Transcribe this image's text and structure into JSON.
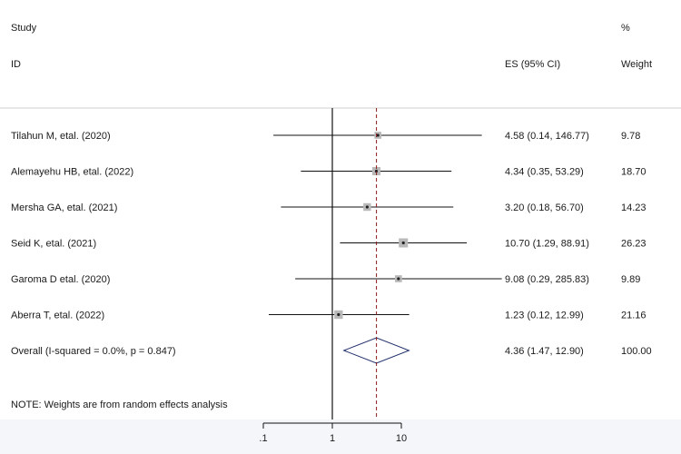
{
  "headers": {
    "study": "Study",
    "id": "ID",
    "es": "ES (95% CI)",
    "pct": "%",
    "weight": "Weight"
  },
  "note": "NOTE: Weights are from random effects analysis",
  "chart_data": {
    "type": "forest",
    "x_scale": "log",
    "x_ticks": [
      0.1,
      1,
      10
    ],
    "x_tick_labels": [
      ".1",
      "1",
      "10"
    ],
    "reference_line": 1,
    "overall_line": 4.36,
    "studies": [
      {
        "label": "Tilahun M, etal. (2020)",
        "es": 4.58,
        "lo": 0.14,
        "hi": 146.77,
        "es_text": "4.58 (0.14, 146.77)",
        "weight": 9.78,
        "weight_text": "9.78"
      },
      {
        "label": "Alemayehu HB, etal. (2022)",
        "es": 4.34,
        "lo": 0.35,
        "hi": 53.29,
        "es_text": "4.34 (0.35, 53.29)",
        "weight": 18.7,
        "weight_text": "18.70"
      },
      {
        "label": "Mersha GA, etal. (2021)",
        "es": 3.2,
        "lo": 0.18,
        "hi": 56.7,
        "es_text": "3.20 (0.18, 56.70)",
        "weight": 14.23,
        "weight_text": "14.23"
      },
      {
        "label": "Seid K, etal. (2021)",
        "es": 10.7,
        "lo": 1.29,
        "hi": 88.91,
        "es_text": "10.70 (1.29, 88.91)",
        "weight": 26.23,
        "weight_text": "26.23"
      },
      {
        "label": "Garoma D etal. (2020)",
        "es": 9.08,
        "lo": 0.29,
        "hi": 285.83,
        "es_text": "9.08 (0.29, 285.83)",
        "weight": 9.89,
        "weight_text": "9.89"
      },
      {
        "label": "Aberra T, etal. (2022)",
        "es": 1.23,
        "lo": 0.12,
        "hi": 12.99,
        "es_text": "1.23 (0.12, 12.99)",
        "weight": 21.16,
        "weight_text": "21.16"
      }
    ],
    "overall": {
      "label": "Overall  (I-squared = 0.0%, p = 0.847)",
      "es": 4.36,
      "lo": 1.47,
      "hi": 12.9,
      "es_text": "4.36 (1.47, 12.90)",
      "weight_text": "100.00"
    },
    "colors": {
      "diamond": "#1f2f6b",
      "dashed_line": "#8b1a1a",
      "box": "#b9b9b9",
      "text": "#1a1a1a"
    }
  }
}
